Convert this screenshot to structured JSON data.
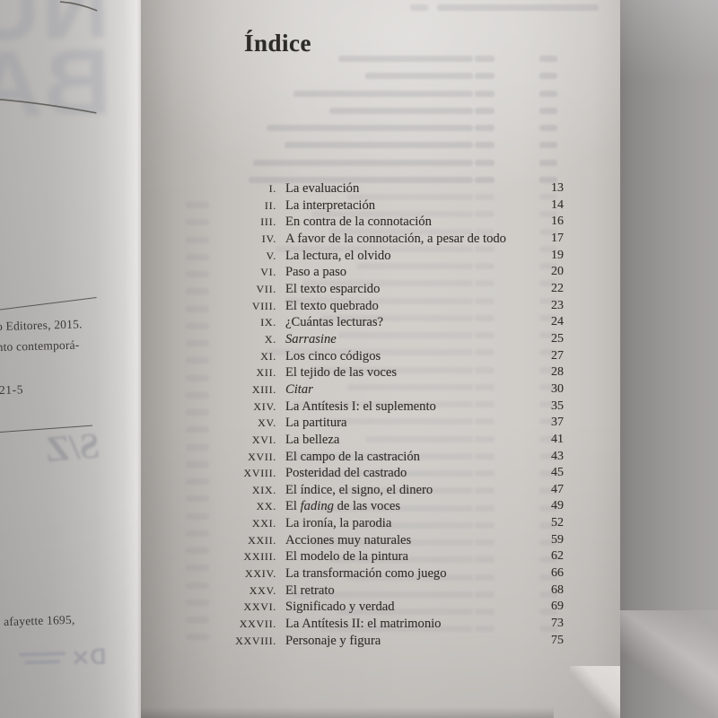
{
  "book": {
    "right_page": {
      "title": "Índice",
      "toc_entries": [
        {
          "num": "I",
          "parts": [
            {
              "t": "La evaluación"
            }
          ],
          "page": "13"
        },
        {
          "num": "II",
          "parts": [
            {
              "t": "La interpretación"
            }
          ],
          "page": "14"
        },
        {
          "num": "III",
          "parts": [
            {
              "t": "En contra de la connotación"
            }
          ],
          "page": "16"
        },
        {
          "num": "IV",
          "parts": [
            {
              "t": "A favor de la connotación, a pesar de todo"
            }
          ],
          "page": "17"
        },
        {
          "num": "V",
          "parts": [
            {
              "t": "La lectura, el olvido"
            }
          ],
          "page": "19"
        },
        {
          "num": "VI",
          "parts": [
            {
              "t": "Paso a paso"
            }
          ],
          "page": "20"
        },
        {
          "num": "VII",
          "parts": [
            {
              "t": "El texto esparcido"
            }
          ],
          "page": "22"
        },
        {
          "num": "VIII",
          "parts": [
            {
              "t": "El texto quebrado"
            }
          ],
          "page": "23"
        },
        {
          "num": "IX",
          "parts": [
            {
              "t": "¿Cuántas lecturas?"
            }
          ],
          "page": "24"
        },
        {
          "num": "X",
          "parts": [
            {
              "t": "Sarrasine",
              "i": true
            }
          ],
          "page": "25"
        },
        {
          "num": "XI",
          "parts": [
            {
              "t": "Los cinco códigos"
            }
          ],
          "page": "27"
        },
        {
          "num": "XII",
          "parts": [
            {
              "t": "El tejido de las voces"
            }
          ],
          "page": "28"
        },
        {
          "num": "XIII",
          "parts": [
            {
              "t": "Citar",
              "i": true
            }
          ],
          "page": "30"
        },
        {
          "num": "XIV",
          "parts": [
            {
              "t": "La Antítesis I: el suplemento"
            }
          ],
          "page": "35"
        },
        {
          "num": "XV",
          "parts": [
            {
              "t": "La partitura"
            }
          ],
          "page": "37"
        },
        {
          "num": "XVI",
          "parts": [
            {
              "t": "La belleza"
            }
          ],
          "page": "41"
        },
        {
          "num": "XVII",
          "parts": [
            {
              "t": "El campo de la castración"
            }
          ],
          "page": "43"
        },
        {
          "num": "XVIII",
          "parts": [
            {
              "t": "Posteridad del castrado"
            }
          ],
          "page": "45"
        },
        {
          "num": "XIX",
          "parts": [
            {
              "t": "El índice, el signo, el dinero"
            }
          ],
          "page": "47"
        },
        {
          "num": "XX",
          "parts": [
            {
              "t": "El "
            },
            {
              "t": "fading",
              "i": true
            },
            {
              "t": " de las voces"
            }
          ],
          "page": "49"
        },
        {
          "num": "XXI",
          "parts": [
            {
              "t": "La ironía, la parodia"
            }
          ],
          "page": "52"
        },
        {
          "num": "XXII",
          "parts": [
            {
              "t": "Acciones muy naturales"
            }
          ],
          "page": "59"
        },
        {
          "num": "XXIII",
          "parts": [
            {
              "t": "El modelo de la pintura"
            }
          ],
          "page": "62"
        },
        {
          "num": "XXIV",
          "parts": [
            {
              "t": "La transformación como juego"
            }
          ],
          "page": "66"
        },
        {
          "num": "XXV",
          "parts": [
            {
              "t": "El retrato"
            }
          ],
          "page": "68"
        },
        {
          "num": "XXVI",
          "parts": [
            {
              "t": "Significado y verdad"
            }
          ],
          "page": "69"
        },
        {
          "num": "XXVII",
          "parts": [
            {
              "t": "La Antítesis II: el matrimonio"
            }
          ],
          "page": "73"
        },
        {
          "num": "XXVIII",
          "parts": [
            {
              "t": "Personaje y figura"
            }
          ],
          "page": "75"
        }
      ]
    },
    "left_page": {
      "imprint_line1": "o Editores, 2015.",
      "imprint_line2": "nto contemporá-",
      "isbn_fragment": "21-5",
      "bleedthrough_title": "S/Z",
      "lafayette_line": "afayette 1695,"
    }
  },
  "colors": {
    "paper": "#d2cfcb",
    "ink": "#312f2b",
    "backdrop": "#9b9898"
  }
}
